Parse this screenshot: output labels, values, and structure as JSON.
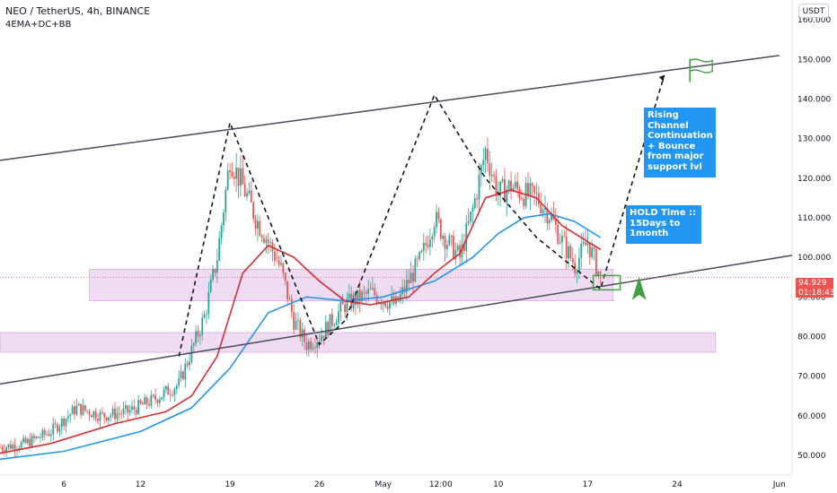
{
  "header": {
    "symbol_line": "NEO / TetherUS, 4h, BINANCE",
    "indicators_line": "4EMA+DC+BB"
  },
  "currency_button": "USDT",
  "annotations": {
    "box1": "Rising Channel Continuation + Bounce from major support lvl",
    "box2": "HOLD Time :: 15Days to 1month"
  },
  "price_tag": {
    "price": "94.929",
    "countdown": "01:18:43"
  },
  "colors": {
    "up": "#26a69a",
    "down": "#ef5350",
    "ema_fast": "#d32f2f",
    "ema_slow": "#2196f3",
    "zone": "#e1bee7",
    "channel": "#4a4a5a",
    "annotation_bg": "#2196f3",
    "signal": "#43a047"
  },
  "chart_data": {
    "type": "candlestick",
    "y_axis": {
      "min": 45,
      "max": 165,
      "ticks": [
        50,
        60,
        70,
        80,
        90,
        100,
        110,
        120,
        130,
        140,
        150,
        160
      ],
      "tick_labels": [
        "50.000",
        "60.000",
        "70.000",
        "80.000",
        "90.000",
        "100.000",
        "110.000",
        "120.000",
        "130.000",
        "140.000",
        "150.000",
        "160.000"
      ]
    },
    "x_axis": {
      "ticks": [
        {
          "label": "6",
          "date": "2021-04-06"
        },
        {
          "label": "12",
          "date": "2021-04-12"
        },
        {
          "label": "19",
          "date": "2021-04-19"
        },
        {
          "label": "26",
          "date": "2021-04-26"
        },
        {
          "label": "May",
          "date": "2021-05-01"
        },
        {
          "label": "12:00",
          "date": "2021-05-05T12:00"
        },
        {
          "label": "10",
          "date": "2021-05-10"
        },
        {
          "label": "17",
          "date": "2021-05-17"
        },
        {
          "label": "24",
          "date": "2021-05-24"
        },
        {
          "label": "Jun",
          "date": "2021-06-01"
        }
      ],
      "start": "2021-04-01",
      "end": "2021-06-02"
    },
    "price_path": [
      [
        "2021-04-01",
        52
      ],
      [
        "2021-04-03",
        53
      ],
      [
        "2021-04-05",
        56
      ],
      [
        "2021-04-07",
        62
      ],
      [
        "2021-04-09",
        60
      ],
      [
        "2021-04-11",
        61
      ],
      [
        "2021-04-13",
        64
      ],
      [
        "2021-04-15",
        68
      ],
      [
        "2021-04-17",
        85
      ],
      [
        "2021-04-18",
        100
      ],
      [
        "2021-04-19",
        125
      ],
      [
        "2021-04-20",
        118
      ],
      [
        "2021-04-21",
        110
      ],
      [
        "2021-04-22",
        104
      ],
      [
        "2021-04-23",
        97
      ],
      [
        "2021-04-24",
        84
      ],
      [
        "2021-04-25",
        78
      ],
      [
        "2021-04-26",
        80
      ],
      [
        "2021-04-28",
        88
      ],
      [
        "2021-04-30",
        91
      ],
      [
        "2021-05-02",
        88
      ],
      [
        "2021-05-04",
        100
      ],
      [
        "2021-05-05",
        110
      ],
      [
        "2021-05-06",
        104
      ],
      [
        "2021-05-07",
        100
      ],
      [
        "2021-05-08",
        112
      ],
      [
        "2021-05-09",
        127
      ],
      [
        "2021-05-10",
        116
      ],
      [
        "2021-05-11",
        118
      ],
      [
        "2021-05-12",
        116
      ],
      [
        "2021-05-13",
        115
      ],
      [
        "2021-05-14",
        111
      ],
      [
        "2021-05-15",
        104
      ],
      [
        "2021-05-16",
        98
      ],
      [
        "2021-05-17",
        104
      ],
      [
        "2021-05-18",
        94.9
      ]
    ],
    "ema_fast": [
      [
        "2021-04-01",
        50.5
      ],
      [
        "2021-04-05",
        53
      ],
      [
        "2021-04-10",
        58
      ],
      [
        "2021-04-14",
        61
      ],
      [
        "2021-04-16",
        65
      ],
      [
        "2021-04-18",
        75
      ],
      [
        "2021-04-20",
        96
      ],
      [
        "2021-04-22",
        103
      ],
      [
        "2021-04-24",
        100
      ],
      [
        "2021-04-26",
        94
      ],
      [
        "2021-04-28",
        89
      ],
      [
        "2021-04-30",
        88
      ],
      [
        "2021-05-03",
        90
      ],
      [
        "2021-05-05",
        96
      ],
      [
        "2021-05-07",
        101
      ],
      [
        "2021-05-09",
        115
      ],
      [
        "2021-05-11",
        117
      ],
      [
        "2021-05-13",
        115
      ],
      [
        "2021-05-15",
        108
      ],
      [
        "2021-05-18",
        102
      ]
    ],
    "ema_slow": [
      [
        "2021-04-01",
        49
      ],
      [
        "2021-04-06",
        51
      ],
      [
        "2021-04-12",
        56
      ],
      [
        "2021-04-16",
        62
      ],
      [
        "2021-04-19",
        72
      ],
      [
        "2021-04-22",
        86
      ],
      [
        "2021-04-25",
        90
      ],
      [
        "2021-04-28",
        89
      ],
      [
        "2021-05-01",
        90
      ],
      [
        "2021-05-05",
        94
      ],
      [
        "2021-05-08",
        100
      ],
      [
        "2021-05-10",
        106
      ],
      [
        "2021-05-12",
        110
      ],
      [
        "2021-05-14",
        111
      ],
      [
        "2021-05-16",
        109
      ],
      [
        "2021-05-18",
        105
      ]
    ],
    "channel_upper": [
      [
        "2021-04-01",
        124.5
      ],
      [
        "2021-06-01",
        151
      ]
    ],
    "channel_lower": [
      [
        "2021-04-01",
        68
      ],
      [
        "2021-06-02",
        100.5
      ]
    ],
    "zones": [
      {
        "x0": "2021-04-08",
        "x1": "2021-05-19",
        "y0": 89,
        "y1": 97
      },
      {
        "x0": "2021-04-01",
        "x1": "2021-05-27",
        "y0": 76,
        "y1": 81
      }
    ],
    "projection_path": [
      [
        "2021-04-15",
        75
      ],
      [
        "2021-04-19",
        134
      ],
      [
        "2021-04-24",
        94
      ],
      [
        "2021-04-26",
        78
      ],
      [
        "2021-04-28",
        84
      ],
      [
        "2021-05-05",
        141
      ],
      [
        "2021-05-09",
        120
      ],
      [
        "2021-05-13",
        105
      ],
      [
        "2021-05-18",
        92
      ],
      [
        "2021-05-23",
        146
      ]
    ],
    "current_price": 94.929
  }
}
